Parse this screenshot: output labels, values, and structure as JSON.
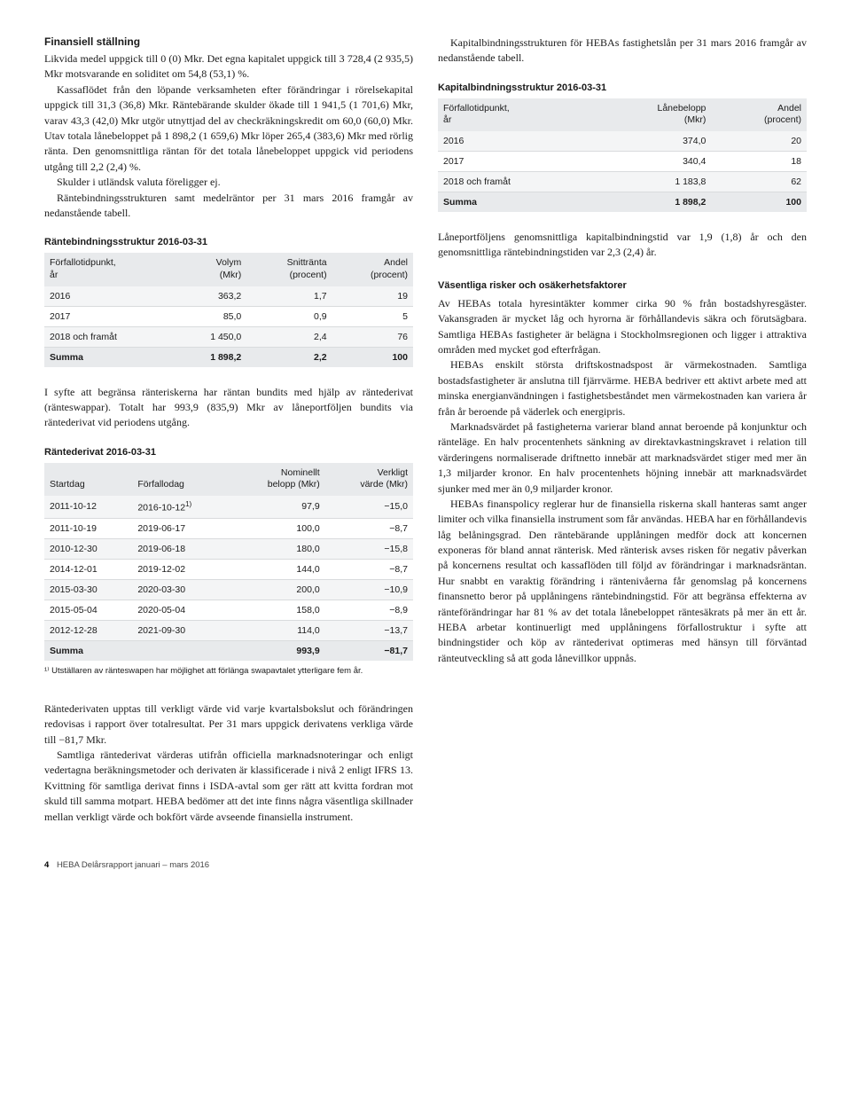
{
  "left": {
    "h1": "Finansiell ställning",
    "p1": "Likvida medel uppgick till 0 (0) Mkr. Det egna kapitalet uppgick till 3 728,4 (2 935,5) Mkr motsvarande en soliditet om 54,8 (53,1) %.",
    "p2": "Kassaflödet från den löpande verksamheten efter förändringar i rörelsekapital uppgick till 31,3 (36,8) Mkr. Räntebärande skulder ökade till 1 941,5 (1 701,6) Mkr, varav 43,3 (42,0) Mkr utgör utnyttjad del av checkräkningskredit om 60,0 (60,0) Mkr. Utav totala lånebeloppet på 1 898,2 (1 659,6) Mkr löper 265,4 (383,6) Mkr med rörlig ränta. Den genomsnittliga räntan för det totala lånebeloppet uppgick vid periodens utgång till 2,2 (2,4) %.",
    "p3": "Skulder i utländsk valuta föreligger ej.",
    "p4": "Räntebindningsstrukturen samt medelräntor per 31 mars 2016 framgår av nedanstående tabell.",
    "table1_title": "Räntebindningsstruktur 2016-03-31",
    "table1_head": [
      "Förfallotidpunkt,\når",
      "Volym\n(Mkr)",
      "Snittränta\n(procent)",
      "Andel\n(procent)"
    ],
    "table1_rows": [
      [
        "2016",
        "363,2",
        "1,7",
        "19"
      ],
      [
        "2017",
        "85,0",
        "0,9",
        "5"
      ],
      [
        "2018 och framåt",
        "1 450,0",
        "2,4",
        "76"
      ]
    ],
    "table1_sum": [
      "Summa",
      "1 898,2",
      "2,2",
      "100"
    ],
    "p5": "I syfte att begränsa ränteriskerna har räntan bundits med hjälp av räntederivat (ränteswappar). Totalt har 993,9 (835,9) Mkr av låneportföljen bundits via räntederivat vid periodens utgång.",
    "table2_title": "Räntederivat 2016-03-31",
    "table2_head": [
      "Startdag",
      "Förfallodag",
      "Nominellt\nbelopp (Mkr)",
      "Verkligt\nvärde (Mkr)"
    ],
    "table2_rows": [
      [
        "2011-10-12",
        "2016-10-12¹⁾",
        "97,9",
        "−15,0"
      ],
      [
        "2011-10-19",
        "2019-06-17",
        "100,0",
        "−8,7"
      ],
      [
        "2010-12-30",
        "2019-06-18",
        "180,0",
        "−15,8"
      ],
      [
        "2014-12-01",
        "2019-12-02",
        "144,0",
        "−8,7"
      ],
      [
        "2015-03-30",
        "2020-03-30",
        "200,0",
        "−10,9"
      ],
      [
        "2015-05-04",
        "2020-05-04",
        "158,0",
        "−8,9"
      ],
      [
        "2012-12-28",
        "2021-09-30",
        "114,0",
        "−13,7"
      ]
    ],
    "table2_sum": [
      "Summa",
      "",
      "993,9",
      "−81,7"
    ],
    "footnote": "¹⁾ Utställaren av ränteswapen har möjlighet att förlänga swapavtalet ytterligare fem år.",
    "p6": "Räntederivaten upptas till verkligt värde vid varje kvartalsbokslut och förändringen redovisas i rapport över totalresultat. Per 31 mars uppgick derivatens verkliga värde till −81,7 Mkr.",
    "p7": "Samtliga räntederivat värderas utifrån officiella marknadsnoteringar och enligt vedertagna beräkningsmetoder och derivaten är klassificerade i nivå 2 enligt IFRS 13. Kvittning för samtliga derivat finns i ISDA-avtal som ger rätt att kvitta fordran mot skuld till samma motpart. HEBA bedömer att det inte finns några väsentliga skillnader mellan verkligt värde och bokfört värde avseende finansiella instrument."
  },
  "right": {
    "p1": "Kapitalbindningsstrukturen för HEBAs fastighetslån per 31 mars 2016 framgår av nedanstående tabell.",
    "table3_title": "Kapitalbindningsstruktur 2016-03-31",
    "table3_head": [
      "Förfallotidpunkt,\når",
      "Lånebelopp\n(Mkr)",
      "Andel\n(procent)"
    ],
    "table3_rows": [
      [
        "2016",
        "374,0",
        "20"
      ],
      [
        "2017",
        "340,4",
        "18"
      ],
      [
        "2018 och framåt",
        "1 183,8",
        "62"
      ]
    ],
    "table3_sum": [
      "Summa",
      "1 898,2",
      "100"
    ],
    "p2": "Låneportföljens genomsnittliga kapitalbindningstid var 1,9 (1,8) år och den genomsnittliga räntebindningstiden var 2,3 (2,4) år.",
    "h2": "Väsentliga risker och osäkerhetsfaktorer",
    "p3": "Av HEBAs totala hyresintäkter kommer cirka 90 % från bostadshyresgäster. Vakansgraden är mycket låg och hyrorna är förhållandevis säkra och förutsägbara. Samtliga HEBAs fastigheter är belägna i Stockholmsregionen och ligger i attraktiva områden med mycket god efterfrågan.",
    "p4": "HEBAs enskilt största driftskostnadspost är värmekostnaden. Samtliga bostadsfastigheter är anslutna till fjärrvärme. HEBA bedriver ett aktivt arbete med att minska energianvändningen i fastighetsbeståndet men värmekostnaden kan variera år från år beroende på väderlek och energipris.",
    "p5": "Marknadsvärdet på fastigheterna varierar bland annat beroende på konjunktur och ränteläge. En halv procentenhets sänkning av direktavkastningskravet i relation till värderingens normaliserade driftnetto innebär att marknadsvärdet stiger med mer än 1,3 miljarder kronor. En halv procentenhets höjning innebär att marknadsvärdet sjunker med mer än 0,9 miljarder kronor.",
    "p6": "HEBAs finanspolicy reglerar hur de finansiella riskerna skall hanteras samt anger limiter och vilka finansiella instrument som får användas. HEBA har en förhållandevis låg belåningsgrad. Den räntebärande upplåningen medför dock att koncernen exponeras för bland annat ränterisk. Med ränterisk avses risken för negativ påverkan på koncernens resultat och kassaflöden till följd av förändringar i marknadsräntan. Hur snabbt en varaktig förändring i räntenivåerna får genomslag på koncernens finansnetto beror på upplåningens räntebindningstid. För att begränsa effekterna av ränteförändringar har 81 % av det totala lånebeloppet räntesäkrats på mer än ett år. HEBA arbetar kontinuerligt med upplåningens förfallostruktur i syfte att bindningstider och köp av räntederivat optimeras med hänsyn till förväntad ränteutveckling så att goda lånevillkor uppnås."
  },
  "footer": {
    "num": "4",
    "text": "HEBA Delårsrapport januari – mars 2016"
  }
}
